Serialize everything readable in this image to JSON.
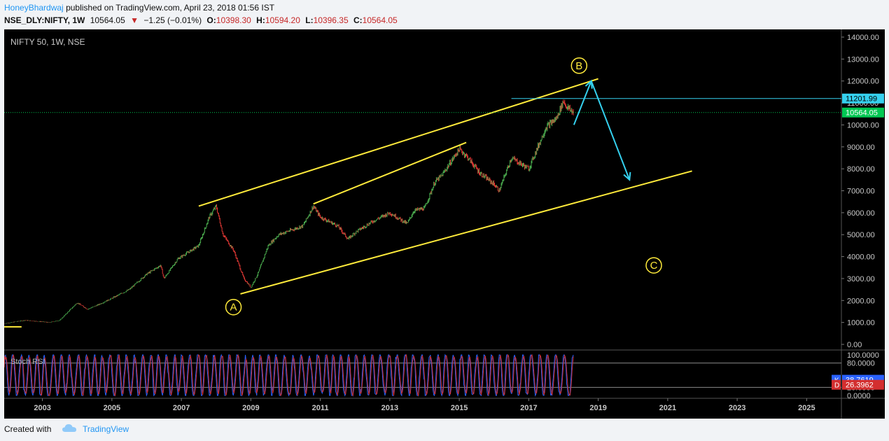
{
  "header": {
    "author": "HoneyBhardwaj",
    "published": "published on TradingView.com, April 23, 2018 01:56 IST",
    "symbol": "NSE_DLY:NIFTY, 1W",
    "last": "10564.05",
    "change": "−1.25 (−0.01%)",
    "o_label": "O:",
    "o_value": "10398.30",
    "h_label": "H:",
    "h_value": "10594.20",
    "l_label": "L:",
    "l_value": "10396.35",
    "c_label": "C:",
    "c_value": "10564.05"
  },
  "chart_data": {
    "type": "line",
    "title": "NIFTY 50, 1W, NSE",
    "price_axis": {
      "min": 0,
      "max": 14000,
      "ticks": [
        "0.00",
        "1000.00",
        "2000.00",
        "3000.00",
        "4000.00",
        "5000.00",
        "6000.00",
        "7000.00",
        "8000.00",
        "9000.00",
        "10000.00",
        "11000.00",
        "12000.00",
        "13000.00",
        "14000.00"
      ]
    },
    "time_axis": {
      "min": 2001.9,
      "max": 2026.0,
      "ticks": [
        "2003",
        "2005",
        "2007",
        "2009",
        "2011",
        "2013",
        "2015",
        "2017",
        "2019",
        "2021",
        "2023",
        "2025"
      ]
    },
    "price_series": {
      "name": "NIFTY",
      "x": [
        2001.9,
        2002.5,
        2003.2,
        2003.5,
        2004.0,
        2004.3,
        2004.6,
        2005.0,
        2005.5,
        2006.0,
        2006.4,
        2006.5,
        2006.9,
        2007.5,
        2007.8,
        2008.0,
        2008.2,
        2008.5,
        2008.8,
        2009.0,
        2009.2,
        2009.5,
        2009.8,
        2010.5,
        2010.8,
        2011.0,
        2011.5,
        2011.8,
        2012.0,
        2012.5,
        2013.0,
        2013.5,
        2013.7,
        2014.0,
        2014.3,
        2014.5,
        2015.0,
        2015.2,
        2015.6,
        2016.0,
        2016.15,
        2016.5,
        2016.8,
        2017.0,
        2017.5,
        2017.8,
        2018.0,
        2018.1,
        2018.3
      ],
      "y": [
        950,
        1100,
        1000,
        1100,
        1900,
        1600,
        1800,
        2100,
        2500,
        3200,
        3600,
        3000,
        3900,
        4500,
        5800,
        6300,
        5000,
        4300,
        3000,
        2600,
        3200,
        4500,
        5000,
        5400,
        6300,
        5800,
        5400,
        4800,
        5100,
        5600,
        6000,
        5500,
        6100,
        6200,
        7400,
        7700,
        8900,
        8600,
        7800,
        7300,
        7000,
        8500,
        8200,
        8000,
        9900,
        10300,
        11100,
        10800,
        10560
      ]
    },
    "stoch_rsi": {
      "name": "Stoch RSI",
      "levels": [
        "100.0000",
        "80.0000",
        "20.0000",
        "0.0000"
      ],
      "k_label": "K",
      "k_value": "38.7619",
      "d_label": "D",
      "d_value": "26.3962"
    },
    "annotations": {
      "labels": [
        {
          "text": "A",
          "x": 2008.5,
          "y": 1700
        },
        {
          "text": "B",
          "x": 2018.45,
          "y": 12700
        },
        {
          "text": "C",
          "x": 2020.6,
          "y": 3600
        }
      ],
      "channel_upper": [
        [
          2007.5,
          6300
        ],
        [
          2019.0,
          12100
        ]
      ],
      "channel_lower": [
        [
          2008.7,
          2300
        ],
        [
          2021.7,
          7900
        ]
      ],
      "inner_line": [
        [
          2010.8,
          6400
        ],
        [
          2015.2,
          9200
        ]
      ],
      "resistance_line": [
        [
          2016.5,
          11201.99
        ],
        [
          2026.0,
          11201.99
        ]
      ],
      "last_price_line": 10564.05,
      "forecast_arrows": [
        [
          [
            2018.3,
            10000
          ],
          [
            2018.8,
            12000
          ]
        ],
        [
          [
            2018.8,
            12000
          ],
          [
            2019.9,
            7500
          ]
        ]
      ],
      "resistance_label": "11201.99",
      "last_price_label": "10564.05"
    },
    "colors": {
      "up": "#4caf50",
      "down": "#e53935",
      "channel": "#ffeb3b",
      "arrow": "#35d1ef",
      "resistance_bg": "#35d1ef",
      "last_bg": "#00c853",
      "k_line": "#2962ff",
      "d_line": "#d32f2f"
    }
  },
  "footer": {
    "created": "Created with",
    "brand": "TradingView"
  }
}
